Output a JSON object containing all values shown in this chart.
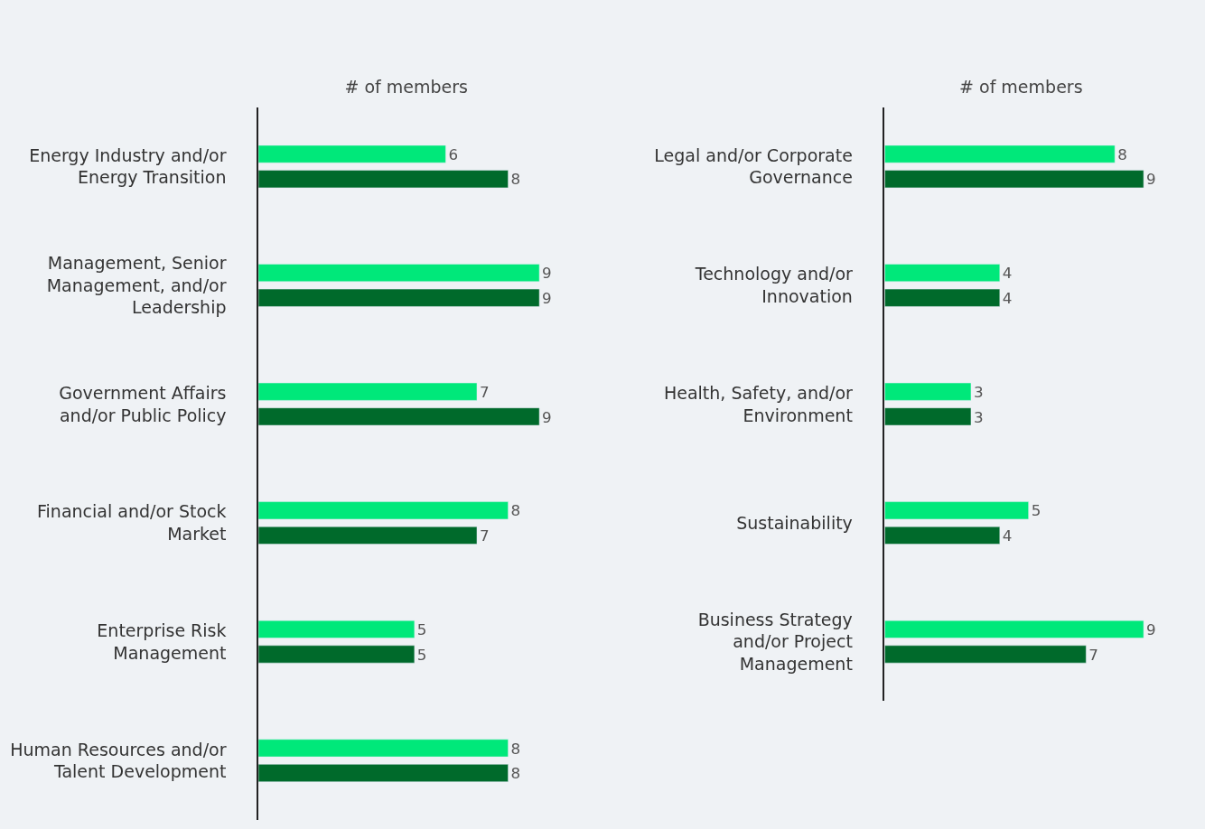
{
  "chart_data": [
    {
      "type": "bar",
      "orientation": "horizontal",
      "xlabel": "# of members",
      "categories": [
        "Energy Industry and/or Energy Transition",
        "Management, Senior Management, and/or Leadership",
        "Government Affairs and/or Public Policy",
        "Financial and/or Stock Market",
        "Enterprise Risk Management",
        "Human Resources and/or Talent Development"
      ],
      "series": [
        {
          "color": "#00e87a",
          "values": [
            6,
            9,
            7,
            8,
            5,
            8
          ]
        },
        {
          "color": "#006a2b",
          "values": [
            8,
            9,
            9,
            7,
            5,
            8
          ]
        }
      ],
      "data_labels": true,
      "tick_labels": "y"
    },
    {
      "type": "bar",
      "orientation": "horizontal",
      "xlabel": "# of members",
      "categories": [
        "Legal and/or Corporate Governance",
        "Technology and/or Innovation",
        "Health, Safety, and/or Environment",
        "Sustainability",
        "Business Strategy and/or Project Management"
      ],
      "series": [
        {
          "color": "#00e87a",
          "values": [
            8,
            4,
            3,
            5,
            9
          ]
        },
        {
          "color": "#006a2b",
          "values": [
            9,
            4,
            3,
            4,
            7
          ]
        }
      ],
      "data_labels": true,
      "tick_labels": "y"
    }
  ]
}
